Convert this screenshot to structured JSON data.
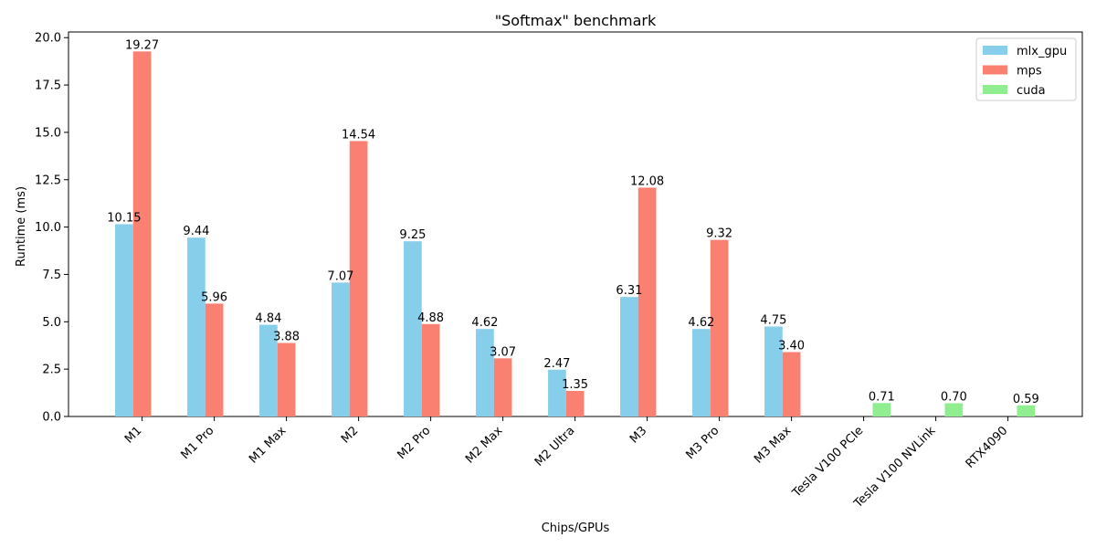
{
  "chart_data": {
    "type": "bar",
    "title": "\"Softmax\" benchmark",
    "xlabel": "Chips/GPUs",
    "ylabel": "Runtime (ms)",
    "ylim": [
      0,
      20.3
    ],
    "yticks": [
      "0.0",
      "2.5",
      "5.0",
      "7.5",
      "10.0",
      "12.5",
      "15.0",
      "17.5",
      "20.0"
    ],
    "categories": [
      "M1",
      "M1 Pro",
      "M1 Max",
      "M2",
      "M2 Pro",
      "M2 Max",
      "M2 Ultra",
      "M3",
      "M3 Pro",
      "M3 Max",
      "Tesla V100 PCIe",
      "Tesla V100 NVLink",
      "RTX4090"
    ],
    "series": [
      {
        "name": "mlx_gpu",
        "color": "#87ceeb",
        "values": [
          10.15,
          9.44,
          4.84,
          7.07,
          9.25,
          4.62,
          2.47,
          6.31,
          4.62,
          4.75,
          null,
          null,
          null
        ]
      },
      {
        "name": "mps",
        "color": "#fa8072",
        "values": [
          19.27,
          5.96,
          3.88,
          14.54,
          4.88,
          3.07,
          1.35,
          12.08,
          9.32,
          3.4,
          null,
          null,
          null
        ]
      },
      {
        "name": "cuda",
        "color": "#90ee90",
        "values": [
          null,
          null,
          null,
          null,
          null,
          null,
          null,
          null,
          null,
          null,
          0.71,
          0.7,
          0.59
        ]
      }
    ],
    "grid": false,
    "legend_position": "top-right"
  }
}
